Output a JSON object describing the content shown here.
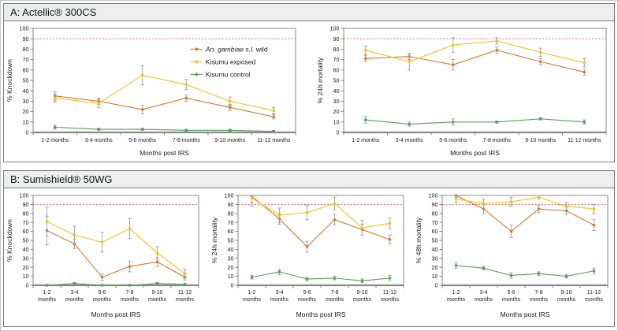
{
  "panels": [
    {
      "id": "A",
      "title": "A: Actellic® 300CS"
    },
    {
      "id": "B",
      "title": "B: Sumishield® 50WG"
    }
  ],
  "colors": {
    "wild": "#d9772e",
    "exposed": "#f0c414",
    "control": "#55a055",
    "threshold": "#e05c5c",
    "error_bar": "#98a0ac",
    "axis": "#7a7a7a",
    "text": "#1a1a1a"
  },
  "legend": {
    "items": [
      {
        "key": "wild",
        "label": "An. gambiae s.l. wild",
        "italic": "An. gambiae s.l.",
        "rest": " wild"
      },
      {
        "key": "exposed",
        "label": "Kisumu exposed"
      },
      {
        "key": "control",
        "label": "Kisumu control"
      }
    ]
  },
  "chart_data": [
    {
      "type": "line",
      "panel": "A",
      "legend": true,
      "two_line_labels": false,
      "ylabel": "% Knockdown",
      "xlabel": "Months post IRS",
      "ylim": [
        0,
        100
      ],
      "ytick_step": 10,
      "threshold": 90,
      "categories": [
        "1-2 months",
        "3-4 months",
        "5-6 months",
        "7-8 months",
        "9-10 months",
        "11-12 months"
      ],
      "series": [
        {
          "name": "An. gambiae s.l. wild",
          "key": "wild",
          "values": [
            35,
            30,
            22,
            33,
            24,
            15
          ],
          "errors": [
            4,
            3,
            4,
            3,
            3,
            2
          ]
        },
        {
          "name": "Kisumu exposed",
          "key": "exposed",
          "values": [
            33,
            28,
            55,
            46,
            30,
            21
          ],
          "errors": [
            4,
            4,
            9,
            5,
            4,
            3
          ]
        },
        {
          "name": "Kisumu control",
          "key": "control",
          "values": [
            5,
            3,
            3,
            2,
            2,
            1
          ],
          "errors": [
            2,
            1,
            1,
            1,
            1,
            1
          ]
        }
      ]
    },
    {
      "type": "line",
      "panel": "A",
      "legend": false,
      "two_line_labels": false,
      "ylabel": "% 24h mortality",
      "xlabel": "Months post IRS",
      "ylim": [
        0,
        100
      ],
      "ytick_step": 10,
      "threshold": 90,
      "categories": [
        "1-2 months",
        "3-4 months",
        "5-6 months",
        "7-8 months",
        "9-10 months",
        "11-12 months"
      ],
      "series": [
        {
          "name": "An. gambiae s.l. wild",
          "key": "wild",
          "values": [
            71,
            73,
            65,
            79,
            68,
            58
          ],
          "errors": [
            3,
            3,
            5,
            3,
            3,
            3
          ]
        },
        {
          "name": "Kisumu exposed",
          "key": "exposed",
          "values": [
            79,
            68,
            84,
            88,
            77,
            67
          ],
          "errors": [
            4,
            8,
            7,
            3,
            4,
            4
          ]
        },
        {
          "name": "Kisumu control",
          "key": "control",
          "values": [
            12,
            8,
            10,
            10,
            13,
            10
          ],
          "errors": [
            3,
            2,
            3,
            1,
            1,
            2
          ]
        }
      ]
    },
    {
      "type": "line",
      "panel": "B",
      "legend": false,
      "two_line_labels": true,
      "ylabel": "% Knockdown",
      "xlabel": "Months post IRS",
      "ylim": [
        0,
        100
      ],
      "ytick_step": 10,
      "threshold": 90,
      "categories": [
        "1-2 months",
        "3-4 months",
        "5-6 months",
        "7-8 months",
        "9-10 months",
        "11-12 months"
      ],
      "series": [
        {
          "name": "An. gambiae s.l. wild",
          "key": "wild",
          "values": [
            61,
            46,
            9,
            21,
            26,
            9
          ],
          "errors": [
            16,
            5,
            4,
            6,
            5,
            3
          ]
        },
        {
          "name": "Kisumu exposed",
          "key": "exposed",
          "values": [
            71,
            56,
            48,
            63,
            36,
            13
          ],
          "errors": [
            16,
            10,
            11,
            11,
            7,
            5
          ]
        },
        {
          "name": "Kisumu control",
          "key": "control",
          "values": [
            0,
            2,
            0,
            0,
            2,
            1
          ],
          "errors": [
            1,
            1,
            1,
            1,
            1,
            1
          ]
        }
      ]
    },
    {
      "type": "line",
      "panel": "B",
      "legend": false,
      "two_line_labels": true,
      "ylabel": "% 24h mortality",
      "xlabel": "Months post IRS",
      "ylim": [
        0,
        100
      ],
      "ytick_step": 10,
      "threshold": 90,
      "categories": [
        "1-2 months",
        "3-4 months",
        "5-6 months",
        "7-8 months",
        "9-10 months",
        "11-12 months"
      ],
      "series": [
        {
          "name": "An. gambiae s.l. wild",
          "key": "wild",
          "values": [
            99,
            74,
            43,
            73,
            62,
            51
          ],
          "errors": [
            11,
            6,
            6,
            6,
            6,
            5
          ]
        },
        {
          "name": "Kisumu exposed",
          "key": "exposed",
          "values": [
            97,
            78,
            81,
            91,
            64,
            69
          ],
          "errors": [
            5,
            8,
            8,
            7,
            8,
            6
          ]
        },
        {
          "name": "Kisumu control",
          "key": "control",
          "values": [
            9,
            15,
            7,
            8,
            5,
            8
          ],
          "errors": [
            2,
            3,
            2,
            2,
            2,
            3
          ]
        }
      ]
    },
    {
      "type": "line",
      "panel": "B",
      "legend": false,
      "two_line_labels": true,
      "ylabel": "% 48h mortality",
      "xlabel": "Months post IRS",
      "ylim": [
        0,
        100
      ],
      "ytick_step": 10,
      "threshold": 90,
      "categories": [
        "1-2 months",
        "3-4 months",
        "5-6 months",
        "7-8 months",
        "9-10 months",
        "11-12 months"
      ],
      "series": [
        {
          "name": "An. gambiae s.l. wild",
          "key": "wild",
          "values": [
            100,
            85,
            60,
            85,
            83,
            67
          ],
          "errors": [
            2,
            5,
            7,
            4,
            4,
            6
          ]
        },
        {
          "name": "Kisumu exposed",
          "key": "exposed",
          "values": [
            96,
            91,
            93,
            98,
            88,
            85
          ],
          "errors": [
            4,
            5,
            5,
            2,
            4,
            5
          ]
        },
        {
          "name": "Kisumu control",
          "key": "control",
          "values": [
            22,
            19,
            11,
            13,
            10,
            16
          ],
          "errors": [
            3,
            2,
            3,
            2,
            2,
            3
          ]
        }
      ]
    }
  ]
}
